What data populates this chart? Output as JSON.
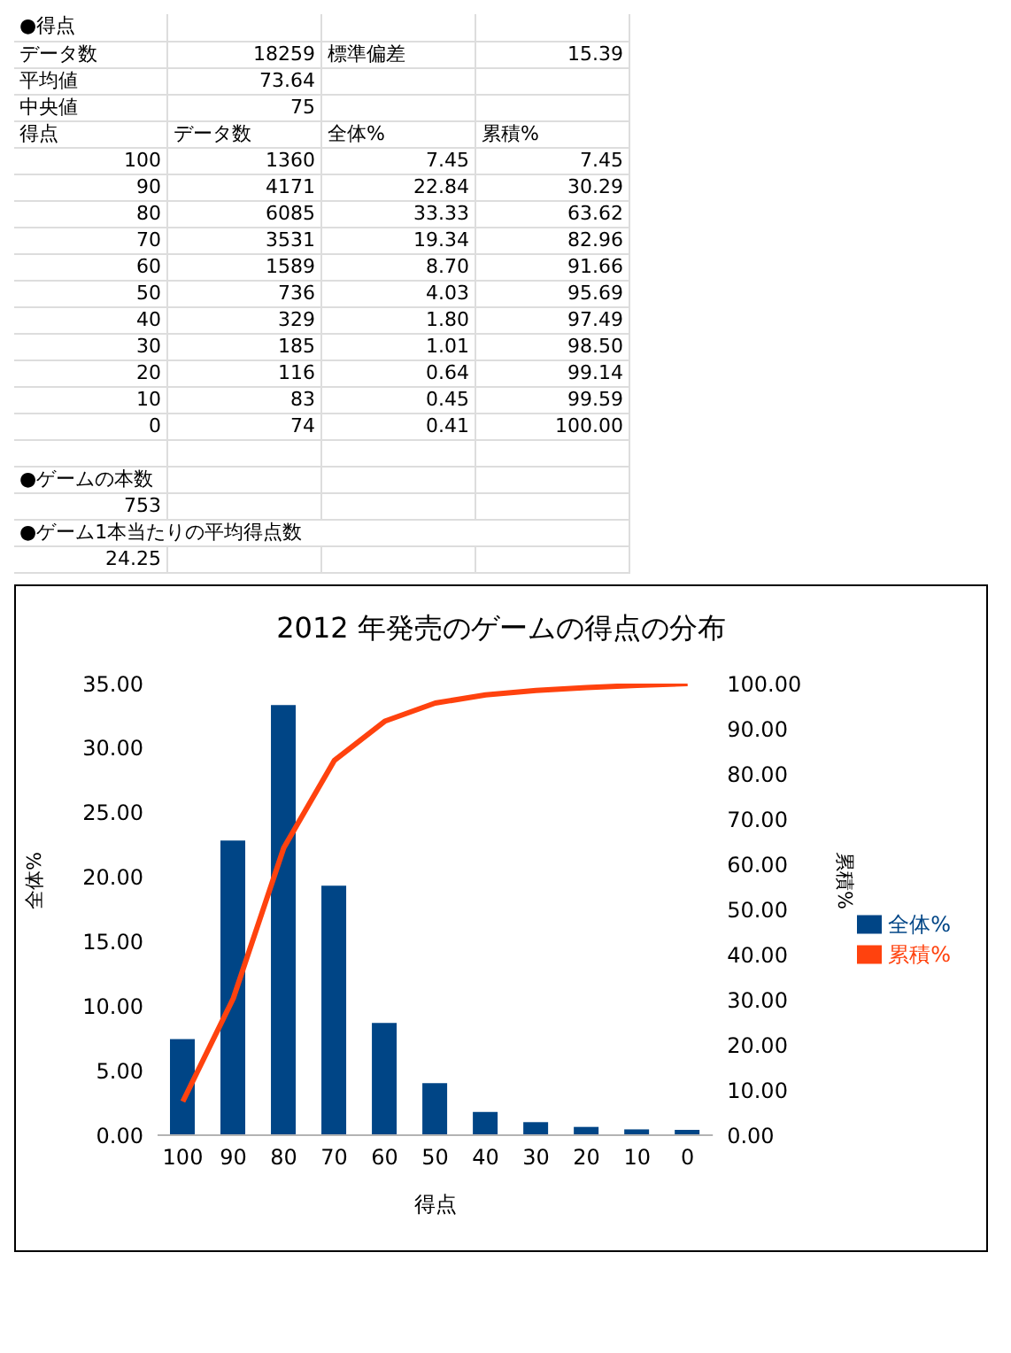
{
  "chart_data": {
    "type": "bar",
    "title": "2012 年発売のゲームの得点の分布",
    "xlabel": "得点",
    "ylabel": "全体%",
    "y2label": "累積%",
    "categories": [
      "100",
      "90",
      "80",
      "70",
      "60",
      "50",
      "40",
      "30",
      "20",
      "10",
      "0"
    ],
    "series": [
      {
        "name": "全体%",
        "color": "#004586",
        "values": [
          7.45,
          22.84,
          33.33,
          19.34,
          8.7,
          4.03,
          1.8,
          1.01,
          0.64,
          0.45,
          0.41
        ]
      },
      {
        "name": "累積%",
        "type": "line",
        "axis": "y2",
        "color": "#ff420e",
        "values": [
          7.45,
          30.29,
          63.62,
          82.96,
          91.66,
          95.69,
          97.49,
          98.5,
          99.14,
          99.59,
          100
        ]
      }
    ],
    "ylim": [
      0,
      35
    ],
    "yticks": [
      {
        "value": 0,
        "label": "0.00"
      },
      {
        "value": 5,
        "label": "5.00"
      },
      {
        "value": 10,
        "label": "10.00"
      },
      {
        "value": 15,
        "label": "15.00"
      },
      {
        "value": 20,
        "label": "20.00"
      },
      {
        "value": 25,
        "label": "25.00"
      },
      {
        "value": 30,
        "label": "30.00"
      },
      {
        "value": 35,
        "label": "35.00"
      }
    ],
    "y2lim": [
      0,
      100
    ],
    "y2ticks": [
      {
        "value": 0,
        "label": "0.00"
      },
      {
        "value": 10,
        "label": "10.00"
      },
      {
        "value": 20,
        "label": "20.00"
      },
      {
        "value": 30,
        "label": "30.00"
      },
      {
        "value": 40,
        "label": "40.00"
      },
      {
        "value": 50,
        "label": "50.00"
      },
      {
        "value": 60,
        "label": "60.00"
      },
      {
        "value": 70,
        "label": "70.00"
      },
      {
        "value": 80,
        "label": "80.00"
      },
      {
        "value": 90,
        "label": "90.00"
      },
      {
        "value": 100,
        "label": "100.00"
      }
    ],
    "grid": false,
    "legend": "right",
    "marker": "none",
    "line_style": "solid",
    "annotations": [
      "●得点",
      "データ数",
      "18259",
      "標準偏差",
      "15.39",
      "平均値",
      "73.64",
      "中央値",
      "75",
      "データ数",
      "1360",
      "4171",
      "6085",
      "3531",
      "1589",
      "736",
      "329",
      "185",
      "116",
      "83",
      "74",
      "●ゲームの本数",
      "753",
      "●ゲーム1本当たりの平均得点数",
      "24.25",
      "7.45",
      "22.84",
      "33.33",
      "19.34",
      "8.70",
      "4.03",
      "1.80",
      "1.01",
      "0.64",
      "0.45",
      "0.41",
      "7.45",
      "30.29",
      "63.62",
      "82.96",
      "91.66",
      "95.69",
      "97.49",
      "98.50",
      "99.14",
      "99.59",
      "100.00"
    ]
  }
}
